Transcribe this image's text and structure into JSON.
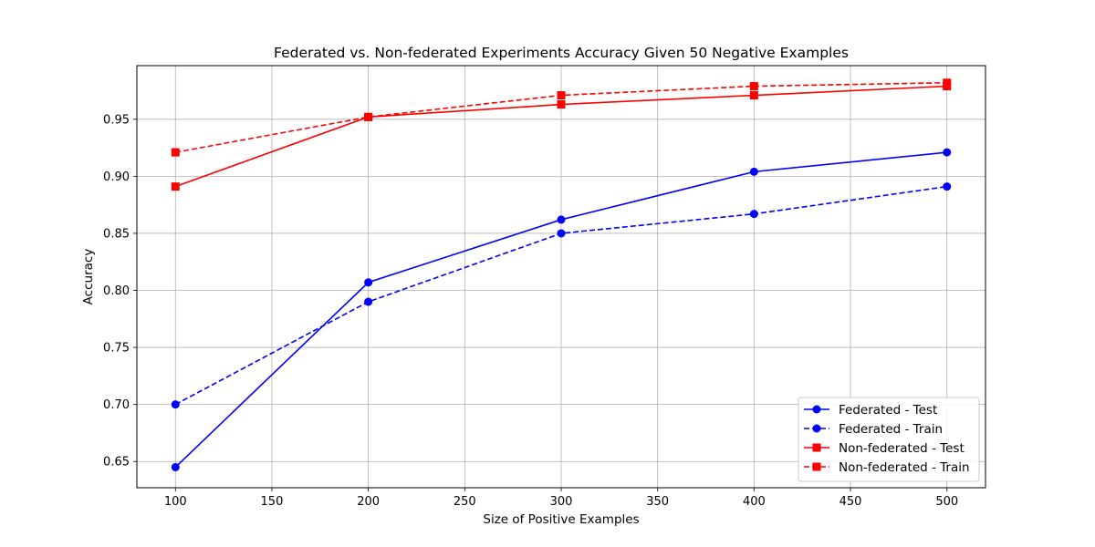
{
  "chart_data": {
    "type": "line",
    "title": "Federated vs. Non-federated Experiments Accuracy Given 50 Negative Examples",
    "xlabel": "Size of Positive Examples",
    "ylabel": "Accuracy",
    "x": [
      100,
      200,
      300,
      400,
      500
    ],
    "xlim": [
      80,
      520
    ],
    "ylim": [
      0.627,
      0.997
    ],
    "xticks": [
      100,
      150,
      200,
      250,
      300,
      350,
      400,
      450,
      500
    ],
    "yticks": [
      0.65,
      0.7,
      0.75,
      0.8,
      0.85,
      0.9,
      0.95
    ],
    "xtick_labels": [
      "100",
      "150",
      "200",
      "250",
      "300",
      "350",
      "400",
      "450",
      "500"
    ],
    "ytick_labels": [
      "0.65",
      "0.70",
      "0.75",
      "0.80",
      "0.85",
      "0.90",
      "0.95"
    ],
    "grid": true,
    "legend_position": "lower-right",
    "series": [
      {
        "name": "Federated - Test",
        "values": [
          0.645,
          0.807,
          0.862,
          0.904,
          0.921
        ],
        "color": "#0000ff",
        "linestyle": "solid",
        "marker": "circle"
      },
      {
        "name": "Federated - Train",
        "values": [
          0.7,
          0.79,
          0.85,
          0.867,
          0.891
        ],
        "color": "#0000ff",
        "linestyle": "dashed",
        "marker": "circle"
      },
      {
        "name": "Non-federated - Test",
        "values": [
          0.891,
          0.952,
          0.963,
          0.971,
          0.979
        ],
        "color": "#ff0000",
        "linestyle": "solid",
        "marker": "square"
      },
      {
        "name": "Non-federated - Train",
        "values": [
          0.921,
          0.952,
          0.971,
          0.979,
          0.982
        ],
        "color": "#ff0000",
        "linestyle": "dashed",
        "marker": "square"
      }
    ]
  }
}
